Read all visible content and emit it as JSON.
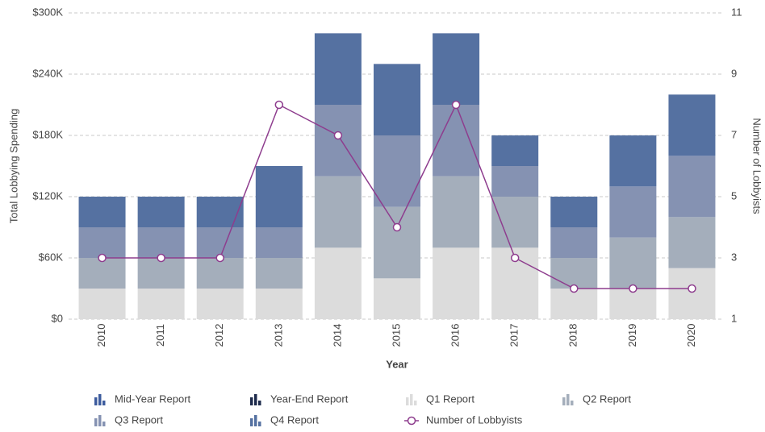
{
  "chart_data": {
    "type": "bar",
    "x_label": "Year",
    "y_label": "Total Lobbying Spending",
    "y2_label": "Number of Lobbyists",
    "categories": [
      "2010",
      "2011",
      "2012",
      "2013",
      "2014",
      "2015",
      "2016",
      "2017",
      "2018",
      "2019",
      "2020"
    ],
    "series": [
      {
        "name": "Mid-Year Report",
        "color": "#3d5c9e",
        "values": [
          0,
          0,
          0,
          0,
          0,
          0,
          0,
          0,
          0,
          0,
          0
        ]
      },
      {
        "name": "Year-End Report",
        "color": "#1e2b4c",
        "values": [
          0,
          0,
          0,
          0,
          0,
          0,
          0,
          0,
          0,
          0,
          0
        ]
      },
      {
        "name": "Q1 Report",
        "color": "#dcdcdc",
        "values": [
          30000,
          30000,
          30000,
          30000,
          70000,
          40000,
          70000,
          70000,
          30000,
          30000,
          50000
        ]
      },
      {
        "name": "Q2 Report",
        "color": "#a4aebb",
        "values": [
          30000,
          30000,
          30000,
          30000,
          70000,
          70000,
          70000,
          50000,
          30000,
          50000,
          50000
        ]
      },
      {
        "name": "Q3 Report",
        "color": "#8592b2",
        "values": [
          30000,
          30000,
          30000,
          30000,
          70000,
          70000,
          70000,
          30000,
          30000,
          50000,
          60000
        ]
      },
      {
        "name": "Q4 Report",
        "color": "#5571a1",
        "values": [
          30000,
          30000,
          30000,
          60000,
          70000,
          70000,
          70000,
          30000,
          30000,
          50000,
          60000
        ]
      },
      {
        "name": "Number of Lobbyists",
        "color": "#8e3d8e",
        "type": "line",
        "axis": "y2",
        "values": [
          3,
          3,
          3,
          8,
          7,
          4,
          8,
          3,
          2,
          2,
          2
        ]
      }
    ],
    "ylim": [
      0,
      300000
    ],
    "yticks": [
      {
        "value": 0,
        "label": "$0"
      },
      {
        "value": 60000,
        "label": "$60K"
      },
      {
        "value": 120000,
        "label": "$120K"
      },
      {
        "value": 180000,
        "label": "$180K"
      },
      {
        "value": 240000,
        "label": "$240K"
      },
      {
        "value": 300000,
        "label": "$300K"
      }
    ],
    "y2lim": [
      1,
      11
    ],
    "y2ticks": [
      1,
      3,
      5,
      7,
      9,
      11
    ],
    "grid": true
  }
}
